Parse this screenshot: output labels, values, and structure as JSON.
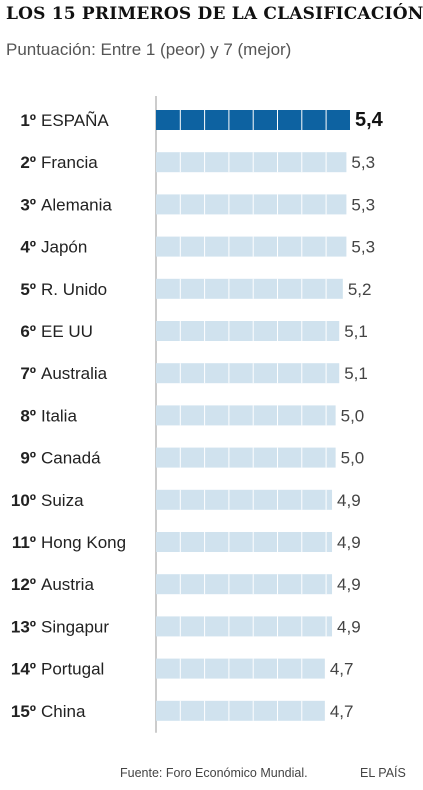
{
  "title": "LOS 15 PRIMEROS DE LA CLASIFICACIÓN",
  "subtitle": "Puntuación: Entre 1 (peor) y 7 (mejor)",
  "source": "Fuente: Foro Económico Mundial.",
  "brand": "EL PAÍS",
  "colors": {
    "highlight_bar": "#0d62a1",
    "bar": "#d0e2ee",
    "bar_divider": "#ffffff",
    "axis": "#9a9a9a",
    "label_text": "#222222",
    "value_text": "#444444"
  },
  "chart_data": {
    "type": "bar",
    "orientation": "horizontal",
    "highlight_index": 0,
    "xlim": [
      0,
      5.4
    ],
    "ranks": [
      "1º",
      "2º",
      "3º",
      "4º",
      "5º",
      "6º",
      "7º",
      "8º",
      "9º",
      "10º",
      "11º",
      "12º",
      "13º",
      "14º",
      "15º"
    ],
    "categories": [
      "ESPAÑA",
      "Francia",
      "Alemania",
      "Japón",
      "R. Unido",
      "EE UU",
      "Australia",
      "Italia",
      "Canadá",
      "Suiza",
      "Hong Kong",
      "Austria",
      "Singapur",
      "Portugal",
      "China"
    ],
    "values": [
      5.4,
      5.3,
      5.3,
      5.3,
      5.2,
      5.1,
      5.1,
      5.0,
      5.0,
      4.9,
      4.9,
      4.9,
      4.9,
      4.7,
      4.7
    ],
    "value_labels": [
      "5,4",
      "5,3",
      "5,3",
      "5,3",
      "5,2",
      "5,1",
      "5,1",
      "5,0",
      "5,0",
      "4,9",
      "4,9",
      "4,9",
      "4,9",
      "4,7",
      "4,7"
    ]
  }
}
